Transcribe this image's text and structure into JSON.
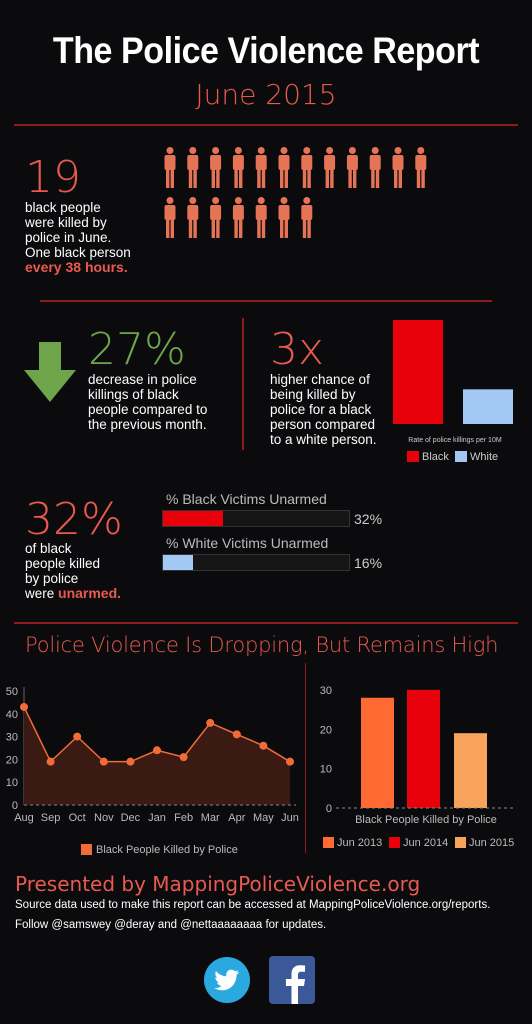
{
  "header": {
    "title": "The Police Violence Report",
    "subtitle": "June 2015"
  },
  "stat_killed": {
    "number": "19",
    "text_lines": [
      "black people",
      "were killed by",
      "police in June.",
      "One black person"
    ],
    "highlight": "every 38 hours.",
    "figure_count": 19
  },
  "stat_decrease": {
    "number": "27%",
    "text_lines": [
      "decrease in police",
      "killings of black",
      "people compared to",
      "the previous month."
    ]
  },
  "stat_chance": {
    "number": "3x",
    "text_lines": [
      "higher chance of",
      "being killed by",
      "police for a black",
      "person compared",
      "to a white person."
    ]
  },
  "stat_unarmed": {
    "number": "32%",
    "text_lines": [
      "of black",
      "people killed",
      "by police"
    ],
    "last_prefix": "were ",
    "highlight": "unarmed.",
    "bars": [
      {
        "label": "% Black Victims Unarmed",
        "value": 32,
        "value_label": "32%",
        "color": "#e8000b"
      },
      {
        "label": "% White Victims Unarmed",
        "value": 16,
        "value_label": "16%",
        "color": "#a1c9f4"
      }
    ]
  },
  "section_title": "Police Violence Is Dropping, But Remains High",
  "chart_data": [
    {
      "type": "bar",
      "categories": [
        "Black",
        "White"
      ],
      "values": [
        3,
        1
      ],
      "xlabel": "Rate of police killings per 10M",
      "legend": [
        {
          "name": "Black",
          "color": "#e8000b"
        },
        {
          "name": "White",
          "color": "#a1c9f4"
        }
      ],
      "legend_placement": "bottom"
    },
    {
      "type": "area",
      "x": [
        "Aug",
        "Sep",
        "Oct",
        "Nov",
        "Dec",
        "Jan",
        "Feb",
        "Mar",
        "Apr",
        "May",
        "Jun"
      ],
      "series": [
        {
          "name": "Black People Killed by Police",
          "values": [
            43,
            19,
            30,
            19,
            19,
            24,
            21,
            36,
            31,
            26,
            19
          ],
          "color": "#f26c3a"
        }
      ],
      "yticks": [
        0,
        10,
        20,
        30,
        40,
        50
      ],
      "ylim": [
        0,
        50
      ],
      "legend_placement": "bottom",
      "grid": false
    },
    {
      "type": "bar",
      "categories": [
        "Jun 2013",
        "Jun 2014",
        "Jun 2015"
      ],
      "values": [
        28,
        30,
        19
      ],
      "colors": [
        "#ff6a33",
        "#e8000b",
        "#f7a35c"
      ],
      "xlabel": "Black People Killed by Police",
      "yticks": [
        0,
        10,
        20,
        30
      ],
      "ylim": [
        0,
        32
      ],
      "legend_placement": "bottom"
    }
  ],
  "footer": {
    "title": "Presented by MappingPoliceViolence.org",
    "line1": "Source data used to make this report can be accessed at MappingPoliceViolence.org/reports.",
    "line2": "Follow @samswey @deray and @nettaaaaaaaa for updates."
  },
  "social": {
    "twitter_icon": "twitter-icon",
    "facebook_icon": "facebook-icon",
    "twitter_color": "#29a9e0",
    "facebook_color": "#3b5998"
  }
}
